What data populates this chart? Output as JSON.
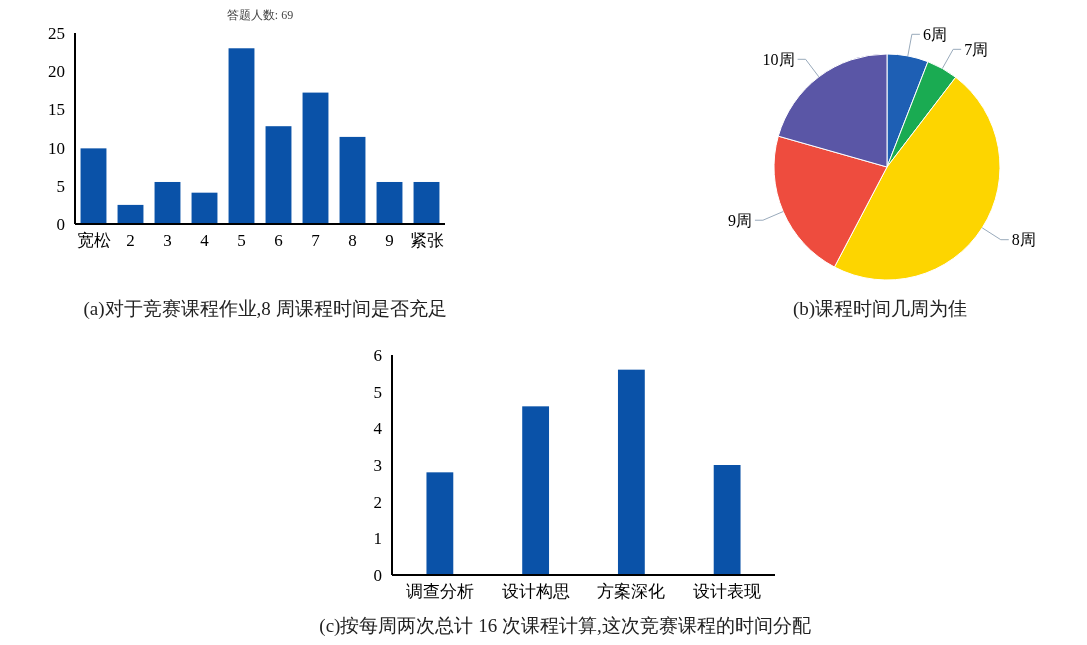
{
  "chart_data": [
    {
      "type": "bar",
      "title": "答题人数: 69",
      "categories": [
        "宽松",
        "2",
        "3",
        "4",
        "5",
        "6",
        "7",
        "8",
        "9",
        "紧张"
      ],
      "values": [
        9.9,
        2.5,
        5.5,
        4.1,
        23.0,
        12.8,
        17.2,
        11.4,
        5.5,
        5.5
      ],
      "color": "#0a52a8",
      "ylim": [
        0,
        25
      ],
      "yticks": [
        0,
        5,
        10,
        15,
        20,
        25
      ],
      "grid": false,
      "annotations": [
        "(a)对于竞赛课程作业,8 周课程时间是否充足"
      ]
    },
    {
      "type": "pie",
      "categories": [
        "6周",
        "7周",
        "8周",
        "9周",
        "10周"
      ],
      "values": [
        5.9,
        4.5,
        47.3,
        21.7,
        20.6
      ],
      "colors": [
        "#1e5fb4",
        "#1aab52",
        "#fdd500",
        "#ee4c3e",
        "#5a56a6"
      ],
      "annotations": [
        "(b)课程时间几周为佳"
      ]
    },
    {
      "type": "bar",
      "categories": [
        "调查分析",
        "设计构思",
        "方案深化",
        "设计表现"
      ],
      "values": [
        2.8,
        4.6,
        5.6,
        3.0
      ],
      "color": "#0a52a8",
      "ylim": [
        0,
        6
      ],
      "yticks": [
        0,
        1,
        2,
        3,
        4,
        5,
        6
      ],
      "grid": false,
      "annotations": [
        "(c)按每周两次总计 16 次课程计算,这次竞赛课程的时间分配"
      ]
    }
  ]
}
